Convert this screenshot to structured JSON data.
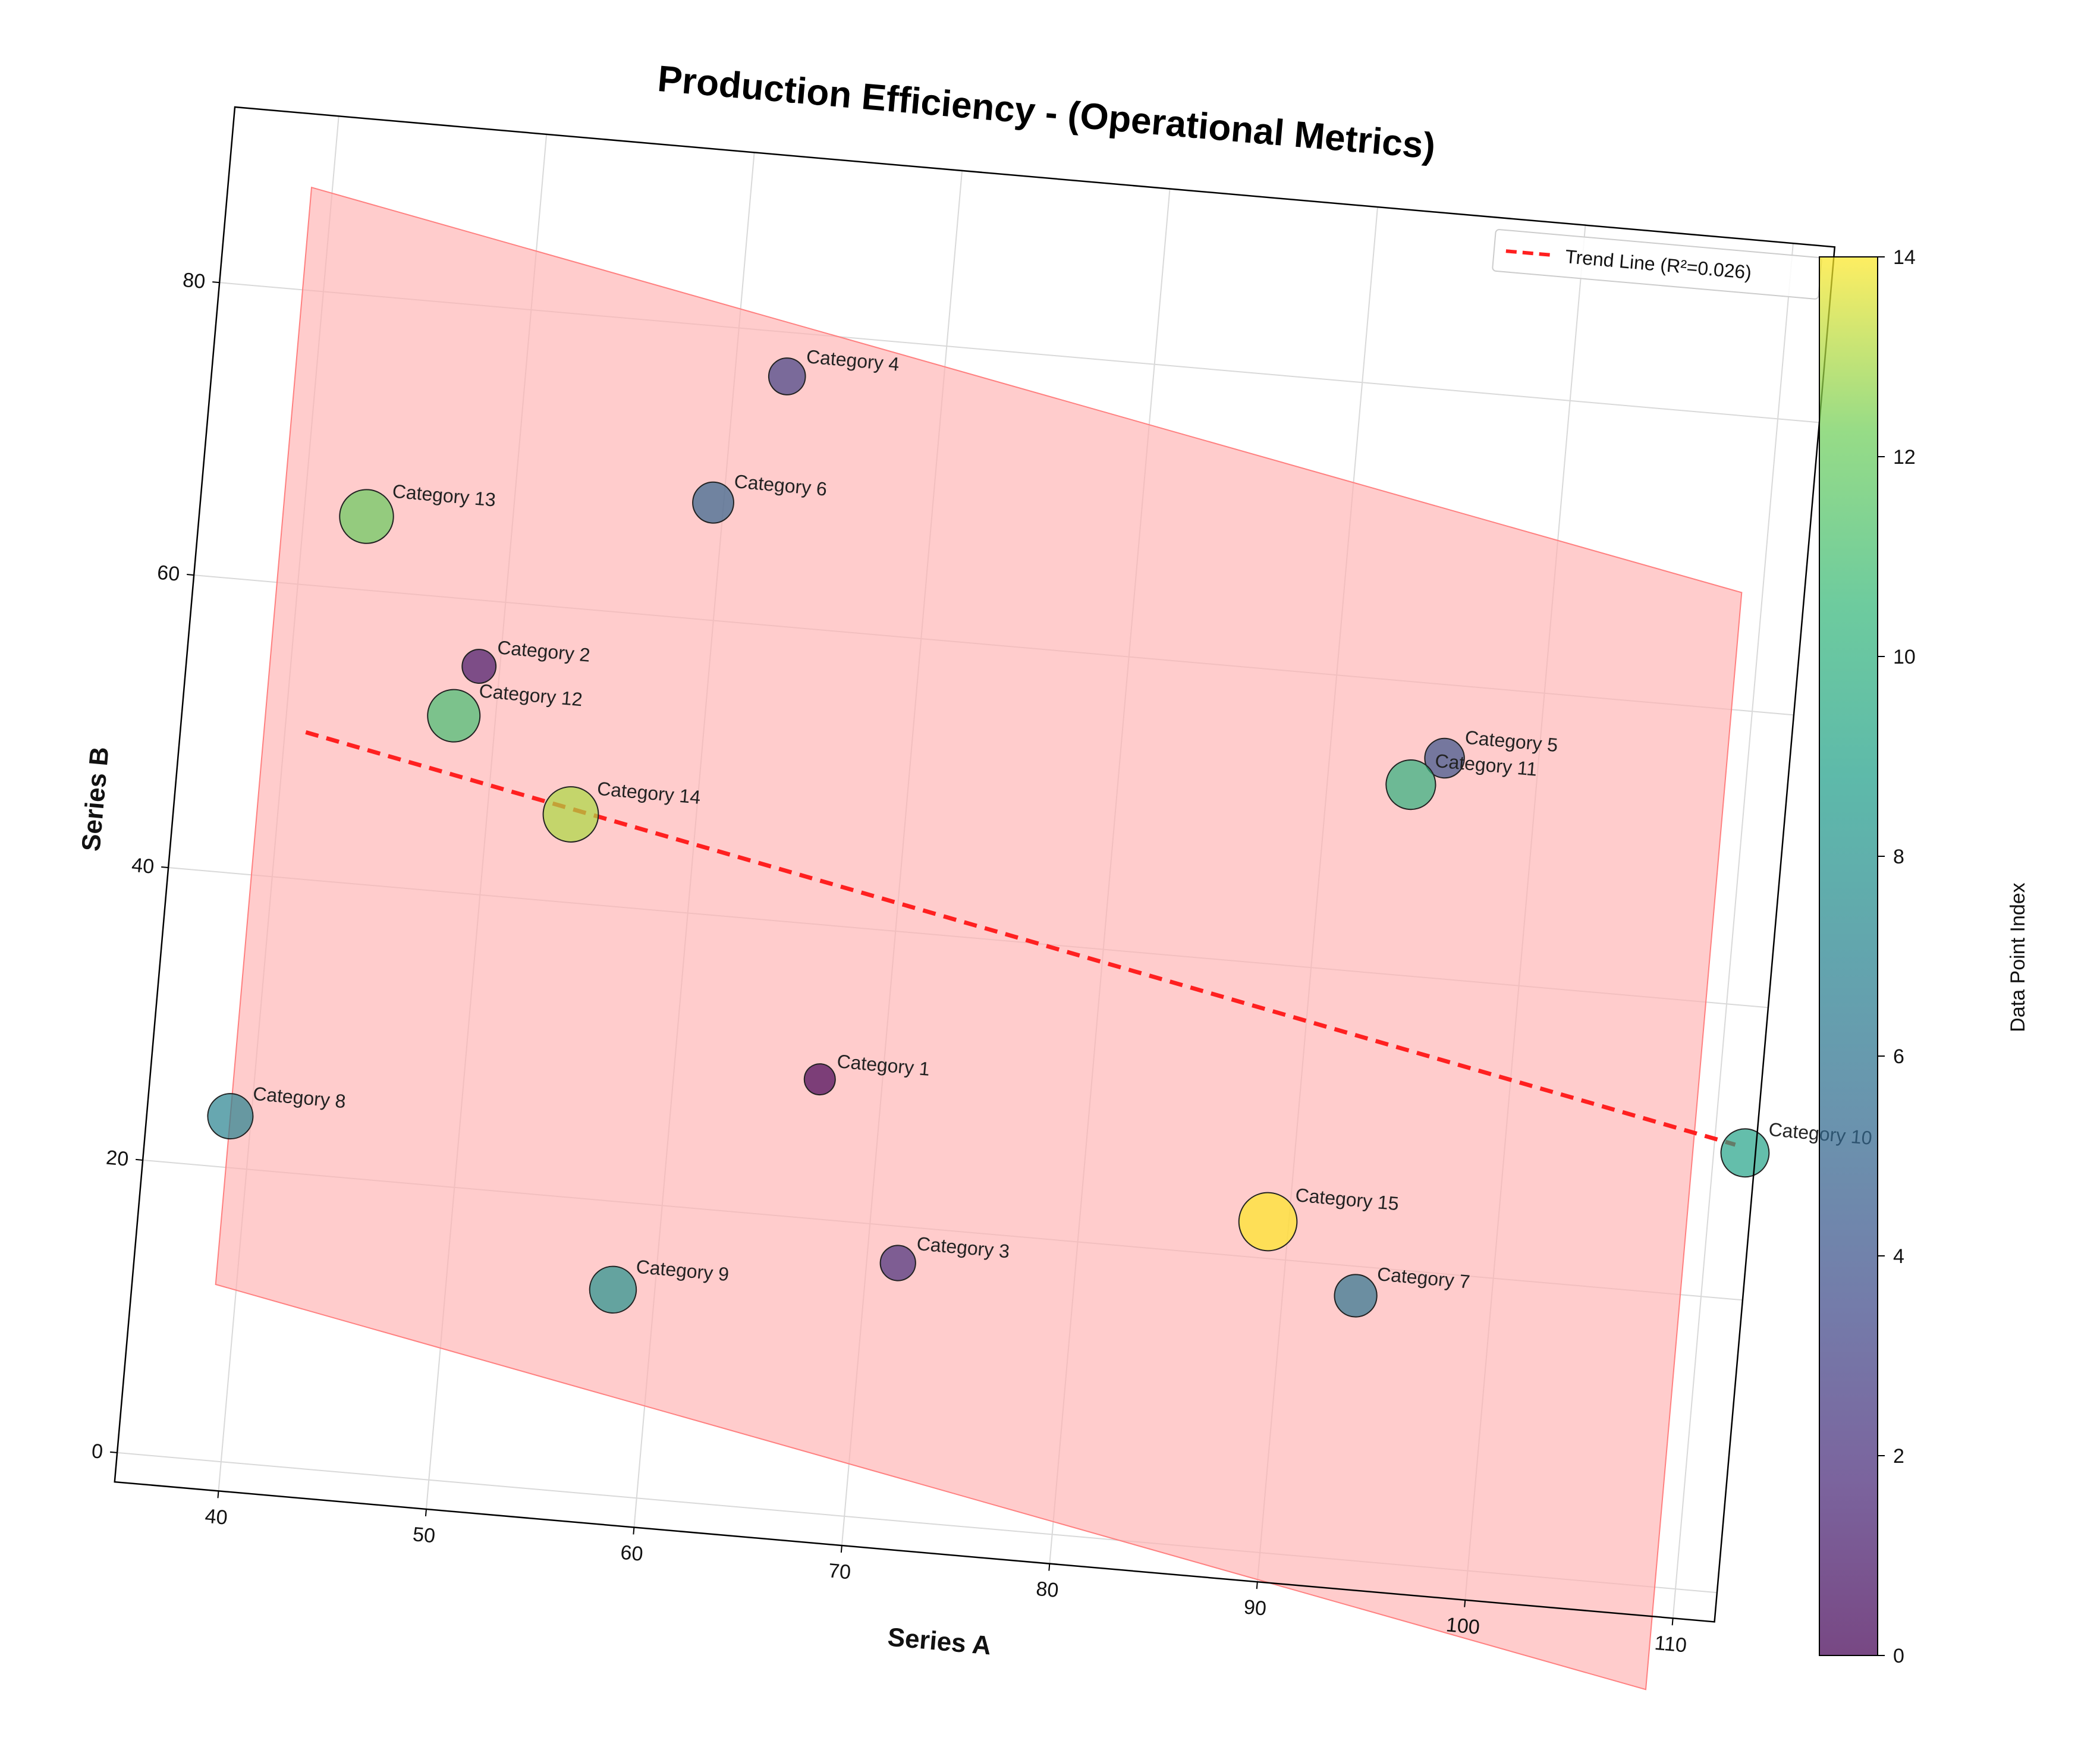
{
  "chart_data": {
    "type": "scatter",
    "title": "Production Efficiency - (Operational Metrics)",
    "xlabel": "Series A",
    "ylabel": "Series B",
    "xlim": [
      35,
      112
    ],
    "ylim": [
      -2,
      92
    ],
    "xticks": [
      40,
      50,
      60,
      70,
      80,
      90,
      100,
      110
    ],
    "yticks": [
      0,
      20,
      40,
      60,
      80
    ],
    "grid": true,
    "points": [
      {
        "label": "Category 1",
        "x": 67.0,
        "y": 29.5,
        "size": 1,
        "index": 0
      },
      {
        "label": "Category 2",
        "x": 49.0,
        "y": 55.5,
        "size": 1.2,
        "index": 1
      },
      {
        "label": "Category 3",
        "x": 71.5,
        "y": 17.5,
        "size": 1.3,
        "index": 2
      },
      {
        "label": "Category 4",
        "x": 62.5,
        "y": 77.0,
        "size": 1.4,
        "index": 3
      },
      {
        "label": "Category 5",
        "x": 95.5,
        "y": 55.0,
        "size": 1.6,
        "index": 4
      },
      {
        "label": "Category 6",
        "x": 59.5,
        "y": 68.0,
        "size": 1.7,
        "index": 5
      },
      {
        "label": "Category 7",
        "x": 93.5,
        "y": 18.0,
        "size": 1.8,
        "index": 6
      },
      {
        "label": "Category 8",
        "x": 39.0,
        "y": 23.5,
        "size": 2.0,
        "index": 7
      },
      {
        "label": "Category 9",
        "x": 58.0,
        "y": 14.0,
        "size": 2.1,
        "index": 8
      },
      {
        "label": "Category 10",
        "x": 111.5,
        "y": 30.0,
        "size": 2.2,
        "index": 9
      },
      {
        "label": "Category 11",
        "x": 94.0,
        "y": 53.0,
        "size": 2.3,
        "index": 10
      },
      {
        "label": "Category 12",
        "x": 48.0,
        "y": 52.0,
        "size": 2.5,
        "index": 11
      },
      {
        "label": "Category 13",
        "x": 43.0,
        "y": 65.0,
        "size": 2.6,
        "index": 12
      },
      {
        "label": "Category 14",
        "x": 54.0,
        "y": 46.0,
        "size": 2.7,
        "index": 13
      },
      {
        "label": "Category 15",
        "x": 89.0,
        "y": 22.5,
        "size": 2.9,
        "index": 14
      }
    ],
    "trend_line": {
      "label": "Trend Line (R²=0.026)",
      "x": [
        41,
        111
      ],
      "y": [
        50,
        30.5
      ],
      "color": "#ff2020",
      "style": "dashed"
    },
    "shaded_region": {
      "x": [
        39,
        109
      ],
      "y_bottom": [
        12,
        -7
      ],
      "y_top": [
        87,
        68
      ],
      "color": "#ffb0b0"
    },
    "legend": {
      "placement": "top-right",
      "entries": [
        "Trend Line (R²=0.026)"
      ]
    },
    "colorbar": {
      "label": "Data Point Index",
      "range": [
        0,
        14
      ],
      "ticks": [
        0,
        2,
        4,
        6,
        8,
        10,
        12,
        14
      ],
      "colormap": "viridis"
    }
  }
}
